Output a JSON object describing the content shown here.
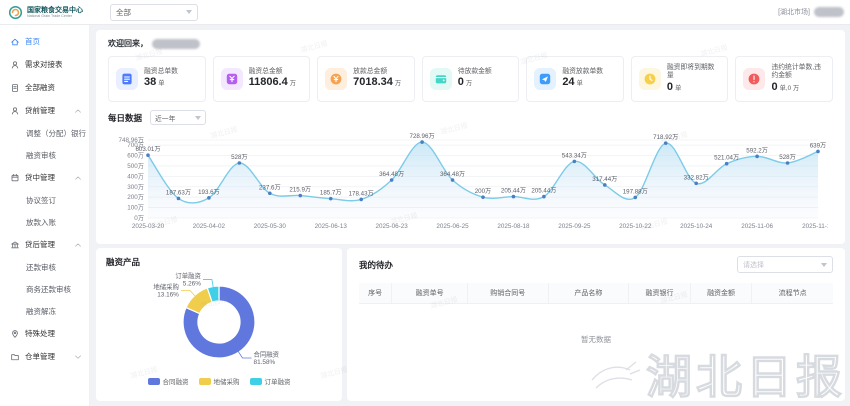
{
  "header": {
    "logo_title": "国家粮食交易中心",
    "logo_subtitle": "National Grain Trade Center",
    "market_select_value": "全部",
    "market_tag": "[湖北市场]"
  },
  "sidebar": {
    "items": [
      {
        "label": "首页",
        "icon": "home-icon",
        "active": true
      },
      {
        "label": "需求对接表",
        "icon": "user-icon"
      },
      {
        "label": "全部融资",
        "icon": "doc-icon"
      },
      {
        "label": "贷前管理",
        "icon": "user-icon",
        "expanded": true,
        "children": [
          "调整（分配）银行",
          "融资审核"
        ]
      },
      {
        "label": "贷中管理",
        "icon": "calendar-icon",
        "expanded": true,
        "children": [
          "协议签订",
          "放款入账"
        ]
      },
      {
        "label": "贷后管理",
        "icon": "bank-icon",
        "expanded": true,
        "children": [
          "还款审核",
          "商务还款审核",
          "融资解冻"
        ]
      },
      {
        "label": "特殊处理",
        "icon": "pin-icon"
      },
      {
        "label": "仓单管理",
        "icon": "folder-icon",
        "expanded": false,
        "children": []
      }
    ]
  },
  "main": {
    "welcome_label": "欢迎回来，",
    "stat_cards": [
      {
        "label": "融资总单数",
        "value": "38",
        "unit": "单",
        "icon": "file-icon",
        "color": "#4d7bfe",
        "bg": "#e9efff"
      },
      {
        "label": "融资总金额",
        "value": "11806.4",
        "unit": "万",
        "icon": "money-icon",
        "color": "#b35ff0",
        "bg": "#f4e8fe"
      },
      {
        "label": "放款总金额",
        "value": "7018.34",
        "unit": "万",
        "icon": "coin-icon",
        "color": "#f5a353",
        "bg": "#fdeedd"
      },
      {
        "label": "待放款金额",
        "value": "0",
        "unit": "万",
        "icon": "wallet-icon",
        "color": "#45d6c8",
        "bg": "#e2f9f6"
      },
      {
        "label": "融资放款单数",
        "value": "24",
        "unit": "单",
        "icon": "send-icon",
        "color": "#3e9cfb",
        "bg": "#e4f1fe"
      },
      {
        "label": "融资即将到期数量",
        "value": "0",
        "unit": "单",
        "icon": "clock-icon",
        "color": "#f6cf4b",
        "bg": "#fdf7e0"
      },
      {
        "label": "违约统计单数,违约金额",
        "value": "0",
        "unit": "单,0 万",
        "icon": "alert-icon",
        "color": "#f15b5b",
        "bg": "#fde9e9"
      }
    ],
    "daily_section": {
      "title": "每日数据",
      "range_value": "近一年"
    },
    "products_section": {
      "title": "融资产品"
    },
    "todo_section": {
      "title": "我的待办",
      "filter_placeholder": "请选择",
      "columns": [
        "序号",
        "融资单号",
        "购销合同号",
        "产品名称",
        "融资银行",
        "融资金额",
        "流程节点"
      ],
      "empty_text": "暂无数据"
    }
  },
  "watermark": {
    "brand": "湖北日报"
  },
  "chart_data": [
    {
      "type": "line",
      "title": "每日数据",
      "range": "近一年",
      "values": [
        603.01,
        187.63,
        193.6,
        528,
        237.6,
        215.9,
        185.7,
        178.43,
        364.48,
        728.96,
        364.48,
        200,
        205.44,
        205.44,
        543.34,
        317.44,
        197.88,
        718.92,
        332.82,
        521.04,
        592.2,
        528,
        639
      ],
      "point_labels": [
        "603.01万",
        "187.63万",
        "193.6万",
        "528万",
        "237.6万",
        "215.9万",
        "185.7万",
        "178.43万",
        "364.48万",
        "728.96万",
        "364.48万",
        "200万",
        "205.44万",
        "205.44万",
        "543.34万",
        "317.44万",
        "197.88万",
        "718.92万",
        "332.82万",
        "521.04万",
        "592.2万",
        "528万",
        "639万"
      ],
      "x_tick_labels": [
        "2025-03-20",
        "2025-04-02",
        "2025-05-30",
        "2025-06-13",
        "2025-06-23",
        "2025-06-25",
        "2025-08-18",
        "2025-09-25",
        "2025-10-22",
        "2025-10-24",
        "2025-11-06",
        "2025-11-18"
      ],
      "x_tick_every": 2,
      "y_ticks": [
        0,
        100,
        200,
        300,
        400,
        500,
        600,
        700
      ],
      "y_tick_labels": [
        "0万",
        "100万",
        "200万",
        "300万",
        "400万",
        "500万",
        "600万",
        "700万"
      ],
      "y_max": 748.96,
      "y_max_label": "748.96万",
      "grid": true,
      "line_color": "#7ccbe8",
      "dot_color": "#4a7fc1",
      "area_top": "#aedcf2",
      "area_bottom": "#e9edf9"
    },
    {
      "type": "pie",
      "title": "融资产品",
      "slices": [
        {
          "name": "合同融资",
          "pct": 81.58,
          "pct_label": "81.58%",
          "color": "#6078dd"
        },
        {
          "name": "地储采购",
          "pct": 13.16,
          "pct_label": "13.16%",
          "color": "#f0cd4b"
        },
        {
          "name": "订单融资",
          "pct": 5.26,
          "pct_label": "5.26%",
          "color": "#3fcfe6"
        }
      ],
      "legend": [
        "合同融资",
        "地储采购",
        "订单融资"
      ],
      "legend_position": "bottom"
    }
  ]
}
